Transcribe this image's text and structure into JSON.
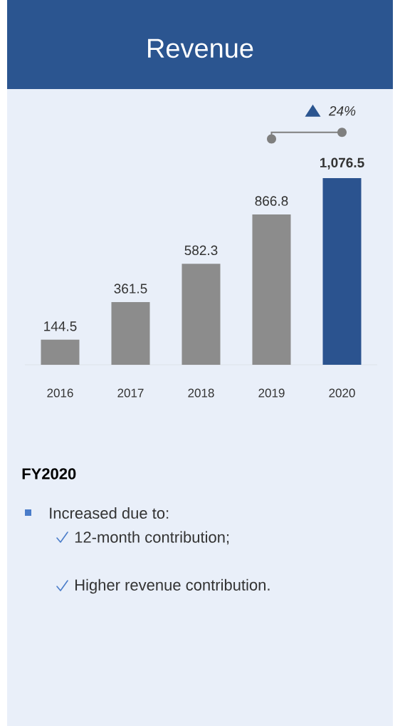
{
  "chart_data": {
    "type": "bar",
    "title": "Revenue",
    "categories": [
      "2016",
      "2017",
      "2018",
      "2019",
      "2020"
    ],
    "values": [
      144.5,
      361.5,
      582.3,
      866.8,
      1076.5
    ],
    "colors": [
      "#8c8c8c",
      "#8c8c8c",
      "#8c8c8c",
      "#8c8c8c",
      "#2b538f"
    ],
    "value_labels": [
      "144.5",
      "361.5",
      "582.3",
      "866.8",
      "1,076.5"
    ],
    "annotations": [
      "24%",
      "FY2020",
      "Increased due to:",
      "12-month contribution;",
      "Higher revenue contribution."
    ]
  }
}
